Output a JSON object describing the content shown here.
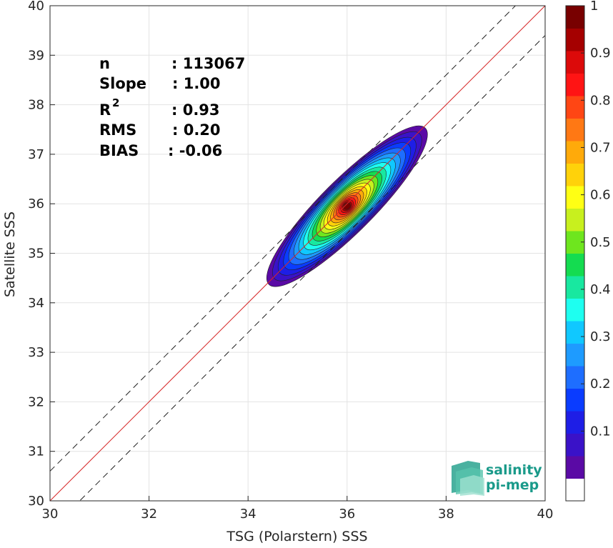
{
  "chart_data": {
    "type": "scatter",
    "xlabel": "TSG (Polarstern) SSS",
    "ylabel": "Satellite SSS",
    "xlim": [
      30,
      40
    ],
    "ylim": [
      30,
      40
    ],
    "x_ticks": [
      "30",
      "32",
      "34",
      "36",
      "38",
      "40"
    ],
    "y_ticks": [
      "30",
      "31",
      "32",
      "33",
      "34",
      "35",
      "36",
      "37",
      "38",
      "39",
      "40"
    ],
    "grid": true,
    "lines": {
      "identity": {
        "slope": 1,
        "intercept": 0,
        "color": "#d62728"
      },
      "upper_bound": {
        "slope": 1,
        "intercept": 0.6,
        "style": "dashed"
      },
      "lower_bound": {
        "slope": 1,
        "intercept": -0.6,
        "style": "dashed"
      }
    },
    "density": {
      "center": [
        36.0,
        35.95
      ],
      "outer_extent_x": [
        34.65,
        37.6
      ],
      "outer_extent_y": [
        34.45,
        37.65
      ],
      "max_level": 1.0
    },
    "colorbar": {
      "ticks": [
        "0.1",
        "0.2",
        "0.3",
        "0.4",
        "0.5",
        "0.6",
        "0.7",
        "0.8",
        "0.9",
        "1"
      ],
      "range": [
        0,
        1
      ],
      "colors": [
        "#ffffff",
        "#5a0aa5",
        "#3a12c8",
        "#1e1ee6",
        "#0a3cff",
        "#1e6eff",
        "#1e9bff",
        "#10c8ff",
        "#1efff0",
        "#18e8a0",
        "#14dc50",
        "#6ee61e",
        "#c8f01e",
        "#ffff14",
        "#ffd20a",
        "#ffaa0a",
        "#ff7814",
        "#ff4614",
        "#ff1414",
        "#dc0a0a",
        "#a50000",
        "#780000"
      ]
    }
  },
  "stats": [
    {
      "label": "n",
      "value": ": 113067"
    },
    {
      "label": "Slope",
      "value": ": 1.00"
    },
    {
      "label": "R",
      "value": ": 0.93",
      "superscript": "2"
    },
    {
      "label": "RMS",
      "value": ": 0.20"
    },
    {
      "label": "BIAS",
      "value": ": -0.06"
    }
  ],
  "logo": {
    "line1": "salinity",
    "line2": "pi-mep",
    "color": "#1a9a8a"
  }
}
